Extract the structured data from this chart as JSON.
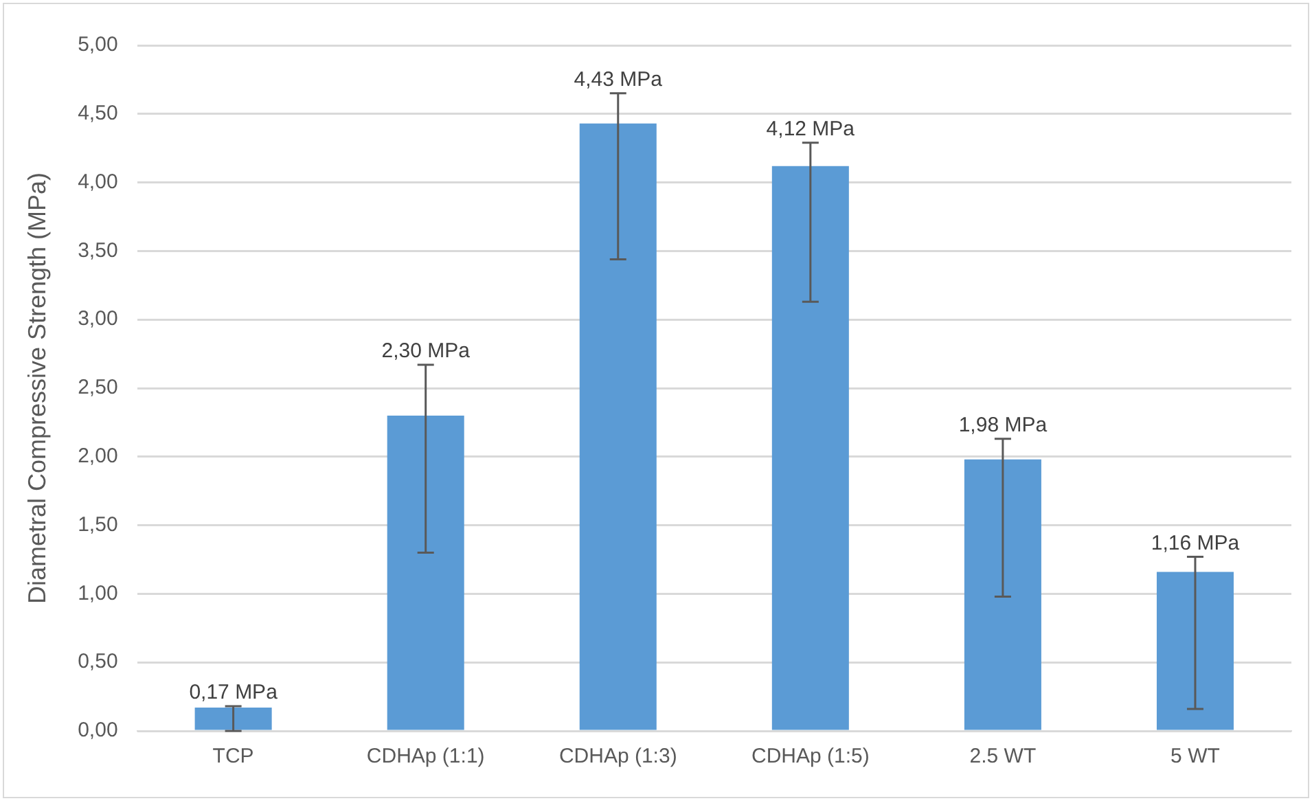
{
  "chart_data": {
    "type": "bar",
    "ylabel": "Diametral Compressive Strength (MPa)",
    "categories": [
      "TCP",
      "CDHAp (1:1)",
      "CDHAp (1:3)",
      "CDHAp (1:5)",
      "2.5 WT",
      "5 WT"
    ],
    "values": [
      0.17,
      2.3,
      4.43,
      4.12,
      1.98,
      1.16
    ],
    "value_labels": [
      "0,17 MPa",
      "2,30 MPa",
      "4,43 MPa",
      "4,12 MPa",
      "1,98 MPa",
      "1,16 MPa"
    ],
    "errors": [
      [
        0,
        0.18
      ],
      [
        1.3,
        2.67
      ],
      [
        3.44,
        4.65
      ],
      [
        3.13,
        4.29
      ],
      [
        0.98,
        2.13
      ],
      [
        0.16,
        1.27
      ]
    ],
    "color": "#5b9bd5",
    "ylim": [
      0,
      5
    ],
    "yticks": [
      {
        "value": 0,
        "label": "0,00"
      },
      {
        "value": 0.5,
        "label": "0,50"
      },
      {
        "value": 1,
        "label": "1,00"
      },
      {
        "value": 1.5,
        "label": "1,50"
      },
      {
        "value": 2,
        "label": "2,00"
      },
      {
        "value": 2.5,
        "label": "2,50"
      },
      {
        "value": 3,
        "label": "3,00"
      },
      {
        "value": 3.5,
        "label": "3,50"
      },
      {
        "value": 4,
        "label": "4,00"
      },
      {
        "value": 4.5,
        "label": "4,50"
      },
      {
        "value": 5,
        "label": "5,00"
      }
    ],
    "grid": "y",
    "legend": false
  }
}
